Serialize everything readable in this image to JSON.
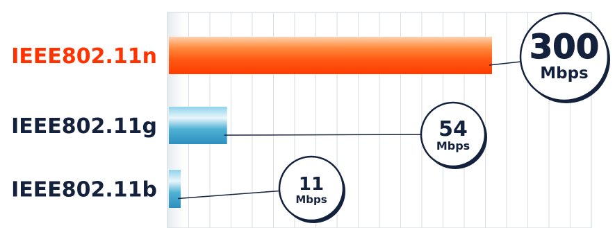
{
  "chart_data": {
    "type": "bar",
    "orientation": "horizontal",
    "title": "",
    "xlabel": "",
    "ylabel": "",
    "categories": [
      "IEEE802.11n",
      "IEEE802.11g",
      "IEEE802.11b"
    ],
    "values": [
      300,
      54,
      11
    ],
    "value_labels": [
      "300",
      "54",
      "11"
    ],
    "unit_label": "Mbps",
    "grid": true,
    "colors": {
      "highlight_label": "#ff3300",
      "default_label": "#14213d",
      "highlight_bar": "#ff5a14",
      "default_bar": "#3da3c8",
      "bubble_outline": "#14213d",
      "highlight_value": "#ff3300"
    }
  }
}
